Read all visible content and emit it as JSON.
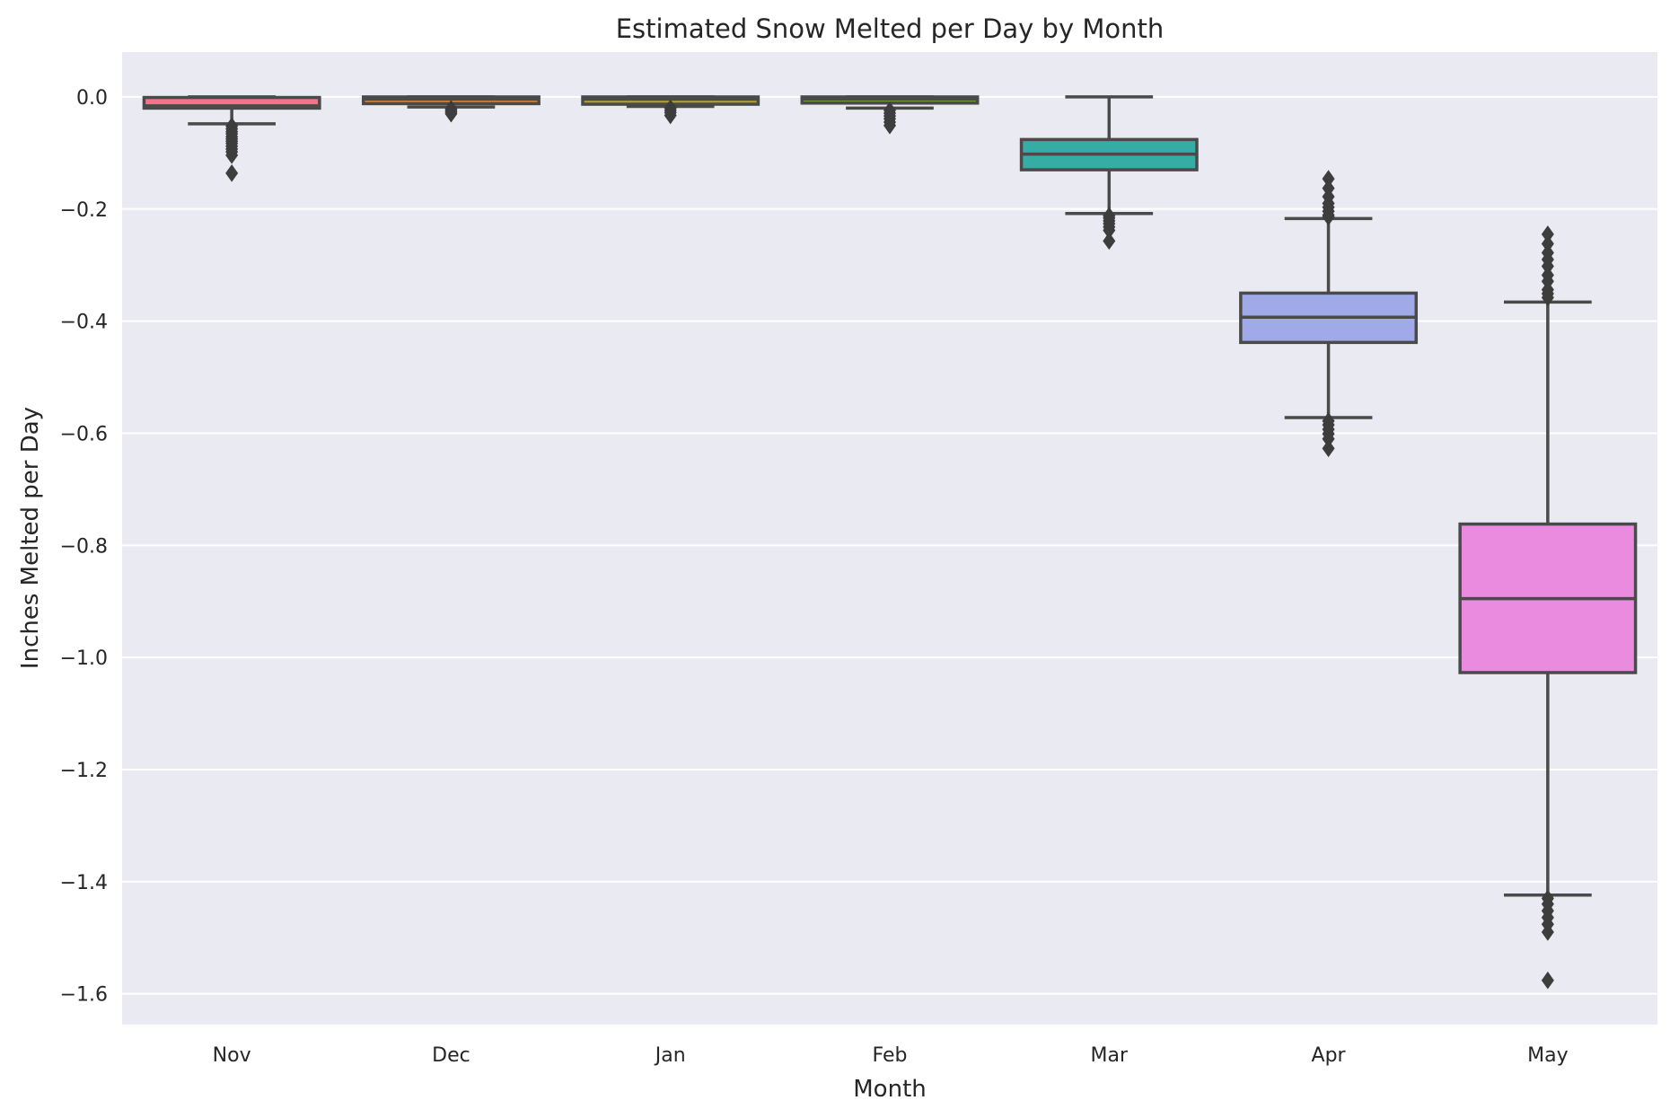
{
  "chart_data": {
    "type": "box",
    "title": "Estimated Snow Melted per Day by Month",
    "xlabel": "Month",
    "ylabel": "Inches Melted per Day",
    "categories": [
      "Nov",
      "Dec",
      "Jan",
      "Feb",
      "Mar",
      "Apr",
      "May"
    ],
    "ylim": [
      -1.655,
      0.08
    ],
    "yticks": [
      0.0,
      -0.2,
      -0.4,
      -0.6,
      -0.8,
      -1.0,
      -1.2,
      -1.4,
      -1.6
    ],
    "ytick_labels": [
      "0.0",
      "−0.2",
      "−0.4",
      "−0.6",
      "−0.8",
      "−1.0",
      "−1.2",
      "−1.4",
      "−1.6"
    ],
    "grid": true,
    "background": "#eaeaf2",
    "boxes": [
      {
        "category": "Nov",
        "color": "#f77189",
        "whisker_high": 0.0,
        "q3": -0.001,
        "median": -0.016,
        "q1": -0.02,
        "whisker_low": -0.048,
        "outliers": [
          -0.052,
          -0.057,
          -0.062,
          -0.066,
          -0.071,
          -0.075,
          -0.079,
          -0.083,
          -0.088,
          -0.093,
          -0.098,
          -0.104,
          -0.136
        ]
      },
      {
        "category": "Dec",
        "color": "#dc8932",
        "whisker_high": 0.0,
        "q3": 0.0,
        "median": -0.004,
        "q1": -0.012,
        "whisker_low": -0.018,
        "outliers": [
          -0.021,
          -0.024,
          -0.027,
          -0.03
        ]
      },
      {
        "category": "Jan",
        "color": "#ae9d31",
        "whisker_high": 0.0,
        "q3": 0.0,
        "median": -0.004,
        "q1": -0.013,
        "whisker_low": -0.017,
        "outliers": [
          -0.02,
          -0.024,
          -0.028,
          -0.033
        ]
      },
      {
        "category": "Feb",
        "color": "#77ab31",
        "whisker_high": 0.0,
        "q3": 0.0,
        "median": -0.004,
        "q1": -0.011,
        "whisker_low": -0.02,
        "outliers": [
          -0.024,
          -0.029,
          -0.034,
          -0.039,
          -0.045,
          -0.051
        ]
      },
      {
        "category": "Mar",
        "color": "#36ada4",
        "whisker_high": 0.0,
        "q3": -0.076,
        "median": -0.102,
        "q1": -0.13,
        "whisker_low": -0.208,
        "outliers": [
          -0.212,
          -0.216,
          -0.221,
          -0.226,
          -0.232,
          -0.238,
          -0.257
        ]
      },
      {
        "category": "Apr",
        "color": "#a1aae9",
        "whisker_high": -0.217,
        "q3": -0.35,
        "median": -0.393,
        "q1": -0.438,
        "whisker_low": -0.572,
        "outliers": [
          -0.146,
          -0.163,
          -0.178,
          -0.19,
          -0.197,
          -0.204,
          -0.211,
          -0.214,
          -0.578,
          -0.585,
          -0.593,
          -0.601,
          -0.61,
          -0.627
        ]
      },
      {
        "category": "May",
        "color": "#ea8bdf",
        "whisker_high": -0.366,
        "q3": -0.762,
        "median": -0.895,
        "q1": -1.027,
        "whisker_low": -1.424,
        "outliers": [
          -0.245,
          -0.262,
          -0.278,
          -0.29,
          -0.302,
          -0.318,
          -0.329,
          -0.344,
          -0.351,
          -0.358,
          -1.43,
          -1.44,
          -1.452,
          -1.464,
          -1.476,
          -1.49,
          -1.576
        ]
      }
    ]
  }
}
